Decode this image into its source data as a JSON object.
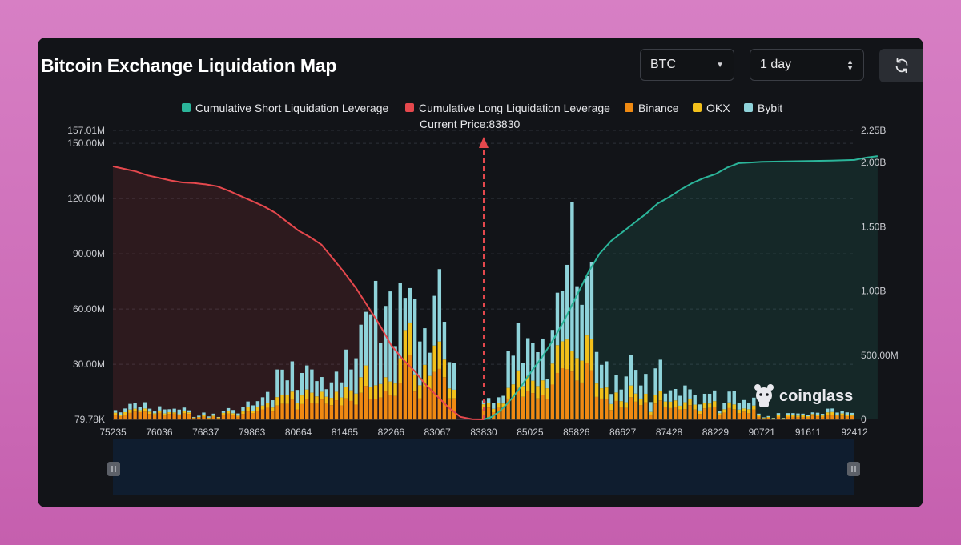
{
  "header": {
    "title": "Bitcoin Exchange Liquidation Map",
    "coin_select": "BTC",
    "range_select": "1 day",
    "refresh_icon": "refresh-icon"
  },
  "watermark": {
    "text": "coinglass",
    "icon": "coinglass-logo-icon"
  },
  "colors": {
    "short_cum": "#2bb59a",
    "long_cum": "#e5484d",
    "binance": "#f08a12",
    "okx": "#f2c01b",
    "bybit": "#8fd3da",
    "current_price": "#e5484d"
  },
  "chart_data": {
    "type": "bar",
    "title": "Bitcoin Exchange Liquidation Map",
    "current_price_label": "Current Price:83830",
    "current_price": 83830,
    "legend": [
      {
        "key": "short_cum",
        "label": "Cumulative Short Liquidation Leverage"
      },
      {
        "key": "long_cum",
        "label": "Cumulative Long Liquidation Leverage"
      },
      {
        "key": "binance",
        "label": "Binance"
      },
      {
        "key": "okx",
        "label": "OKX"
      },
      {
        "key": "bybit",
        "label": "Bybit"
      }
    ],
    "x_tick_labels": [
      "75235",
      "76036",
      "76837",
      "79863",
      "80664",
      "81465",
      "82266",
      "83067",
      "83830",
      "85025",
      "85826",
      "86627",
      "87428",
      "88229",
      "90721",
      "91611",
      "92412"
    ],
    "y_left": {
      "min": 79780,
      "max": 157010000,
      "ticks": [
        {
          "value": 79780,
          "label": "79.78K"
        },
        {
          "value": 30000000,
          "label": "30.00M"
        },
        {
          "value": 60000000,
          "label": "60.00M"
        },
        {
          "value": 90000000,
          "label": "90.00M"
        },
        {
          "value": 120000000,
          "label": "120.00M"
        },
        {
          "value": 150000000,
          "label": "150.00M"
        },
        {
          "value": 157010000,
          "label": "157.01M"
        }
      ]
    },
    "y_right": {
      "min": 0,
      "max": 2250000000,
      "ticks": [
        {
          "value": 0,
          "label": "0"
        },
        {
          "value": 500000000,
          "label": "500.00M"
        },
        {
          "value": 1000000000,
          "label": "1.00B"
        },
        {
          "value": 1500000000,
          "label": "1.50B"
        },
        {
          "value": 2000000000,
          "label": "2.00B"
        },
        {
          "value": 2250000000,
          "label": "2.25B"
        }
      ]
    },
    "long_cumulative": {
      "name": "Cumulative Long Liquidation Leverage",
      "x": [
        75235,
        75435,
        75635,
        75835,
        76036,
        76236,
        76436,
        76636,
        76837,
        77593,
        78350,
        79106,
        79863,
        80063,
        80263,
        80464,
        80664,
        80864,
        81064,
        81264,
        81465,
        81665,
        81865,
        82065,
        82266,
        82466,
        82666,
        82866,
        83067,
        83258,
        83448,
        83639,
        83830
      ],
      "y": [
        1970000000,
        1950000000,
        1930000000,
        1900000000,
        1880000000,
        1860000000,
        1845000000,
        1840000000,
        1830000000,
        1815000000,
        1780000000,
        1740000000,
        1700000000,
        1660000000,
        1610000000,
        1540000000,
        1470000000,
        1420000000,
        1360000000,
        1250000000,
        1140000000,
        1020000000,
        880000000,
        740000000,
        580000000,
        470000000,
        380000000,
        270000000,
        180000000,
        90000000,
        20000000,
        2000000,
        0
      ]
    },
    "short_cumulative": {
      "name": "Cumulative Short Liquidation Leverage",
      "x": [
        83830,
        84029,
        84228,
        84428,
        84627,
        84826,
        85025,
        85225,
        85426,
        85626,
        85826,
        86026,
        86226,
        86427,
        86627,
        86827,
        87027,
        87228,
        87428,
        87628,
        87828,
        88029,
        88229,
        88852,
        89475,
        90098,
        90721,
        91166,
        91611,
        92011,
        92412,
        92612,
        92812
      ],
      "y": [
        0,
        18000000,
        60000000,
        120000000,
        190000000,
        270000000,
        360000000,
        480000000,
        620000000,
        780000000,
        960000000,
        1140000000,
        1290000000,
        1390000000,
        1460000000,
        1530000000,
        1600000000,
        1680000000,
        1730000000,
        1790000000,
        1840000000,
        1880000000,
        1910000000,
        1960000000,
        1995000000,
        2000000000,
        2005000000,
        2008000000,
        2012000000,
        2015000000,
        2020000000,
        2038000000,
        2050000000
      ]
    },
    "bars": {
      "bybit": [
        [
          0,
          0,
          0,
          0,
          0,
          0,
          0,
          0,
          0,
          0,
          0,
          0,
          0,
          0,
          0,
          0,
          0,
          0,
          0,
          0,
          0,
          0,
          0,
          0,
          0,
          0,
          0,
          0,
          0,
          0,
          0,
          0,
          0,
          0,
          0,
          0,
          0,
          0,
          0,
          0,
          0,
          0,
          0,
          0,
          0,
          0,
          0,
          0,
          0,
          0,
          0,
          0,
          0,
          0,
          0,
          0,
          0,
          0,
          0,
          0,
          0,
          0,
          0,
          0,
          0,
          0,
          0,
          0,
          0,
          0,
          0,
          0,
          0,
          0,
          0,
          0,
          0,
          0,
          0,
          0,
          0,
          0,
          0,
          0,
          0,
          0,
          0,
          0,
          0,
          0,
          0,
          0,
          0,
          0,
          0,
          0,
          0,
          0,
          0,
          0,
          0,
          0,
          0,
          0,
          0,
          0,
          0,
          0,
          0,
          0,
          0,
          0,
          0,
          0,
          0,
          0,
          0,
          0,
          0,
          0,
          0,
          0,
          0,
          0,
          0,
          0,
          0,
          0,
          0,
          0,
          0,
          0,
          0,
          0,
          0,
          0,
          0,
          0,
          0,
          0,
          0,
          0,
          0,
          0,
          0,
          0,
          0,
          0,
          0,
          0,
          0,
          0,
          0,
          0,
          0,
          0,
          0,
          0,
          0,
          0,
          0,
          0,
          0,
          0,
          0,
          0,
          0,
          0,
          0,
          0,
          0,
          0,
          0,
          0,
          0,
          0,
          0,
          0,
          0,
          0,
          0,
          0,
          0,
          0,
          0,
          0
        ]
      ],
      "binance": [
        [
          2.6,
          1.8,
          2.6,
          3.6,
          4.3,
          4,
          4.3,
          3.1,
          2.8,
          3.6,
          2.1,
          3.1,
          3.2,
          2.3,
          3.4,
          3.1,
          0.8,
          1.1,
          1.5,
          0.7,
          1.5,
          0.8,
          2.7,
          3.2,
          2.6,
          1.6,
          3.1,
          4.4,
          3.4,
          4.6,
          5.5,
          6.4,
          4.4,
          7.6,
          8.6,
          8.5,
          10.8,
          5.5,
          8.4,
          11,
          8.9,
          8.6,
          10.9,
          8.6,
          7.8,
          10.5,
          7.7,
          11.5,
          10.1,
          8.1,
          14.5,
          18.3,
          11.3,
          11.1,
          12,
          15.5,
          13.5,
          12.8,
          20,
          31.2,
          35.2,
          15.2,
          11.6,
          18.1,
          16.2,
          25.8,
          27.5,
          23,
          11.5,
          11.5,
          0,
          0,
          0,
          0,
          0,
          5.4,
          6.5,
          4,
          6.3,
          6.5,
          11.4,
          12,
          17.1,
          12.4,
          15.5,
          14.4,
          11.5,
          13.4,
          11.3,
          19,
          25.3,
          27.9,
          27.3,
          26.1,
          21.2,
          20.1,
          30.7,
          26.8,
          12.3,
          11.4,
          11,
          5.2,
          10.1,
          6.9,
          6.3,
          12.1,
          9.7,
          7.9,
          9.4,
          2.7,
          8.7,
          10.4,
          6.6,
          6.2,
          6.6,
          5.4,
          5.7,
          7.8,
          5.4,
          3.1,
          6.1,
          6.3,
          7,
          2.4,
          3.8,
          6.2,
          5.6,
          3.4,
          4.3,
          3.4,
          5.5,
          1.6,
          0.6,
          1,
          0.4,
          1.6,
          0.4,
          1.6,
          1.6,
          1.4,
          1.4,
          1.2,
          2.2,
          1.8,
          1.6,
          2.6,
          2.5,
          2,
          2.1,
          1.8,
          1.9
        ],
        [
          0
        ]
      ],
      "okx": [
        [
          1.1,
          0.5,
          1.4,
          1.8,
          1.6,
          1.1,
          1.7,
          1.2,
          0.6,
          1.3,
          1.2,
          0.9,
          0.7,
          0.6,
          1.3,
          0.8,
          0.3,
          0.3,
          0.8,
          0.3,
          0.6,
          0.4,
          0.9,
          1.3,
          0.8,
          0.5,
          1.3,
          2.3,
          1.3,
          2.1,
          2.1,
          2.4,
          2.1,
          4.6,
          4.6,
          4.7,
          4.4,
          3.3,
          4.7,
          5.3,
          5.7,
          4,
          4.2,
          3.8,
          4,
          4.6,
          4.3,
          6.1,
          5.8,
          6,
          8.5,
          11.1,
          6.6,
          7.5,
          7.3,
          7.5,
          7.2,
          6.8,
          13.3,
          17.4,
          17.5,
          9.3,
          7,
          11.6,
          7.5,
          14.4,
          14.9,
          9.6,
          5.4,
          4.7,
          0,
          0,
          0,
          0,
          0,
          2.9,
          2.6,
          1.8,
          2.5,
          2.2,
          5.8,
          7.1,
          9.6,
          5.8,
          8.1,
          6.7,
          6.7,
          7.9,
          5.7,
          11.4,
          15.1,
          14.6,
          16.2,
          11.2,
          12.2,
          11.9,
          15,
          17,
          7.3,
          5.6,
          6.4,
          3.2,
          4.6,
          3.1,
          3.1,
          6.4,
          4.4,
          3.5,
          4.6,
          1.4,
          4.6,
          5.1,
          3.2,
          3.5,
          3.8,
          2.1,
          3.7,
          3.6,
          2.7,
          1.8,
          2.9,
          2.4,
          3,
          1,
          1.8,
          3.1,
          2.6,
          2,
          1.7,
          2.2,
          2.1,
          0.8,
          0.3,
          0.4,
          0.3,
          0.7,
          0.3,
          0.8,
          0.7,
          0.7,
          0.9,
          0.6,
          0.8,
          0.9,
          0.6,
          1.3,
          1.6,
          0.7,
          1.2,
          0.9,
          0.8
        ]
      ],
      "bybit_top": [
        [
          1.4,
          1.6,
          2,
          3.1,
          2.9,
          1.7,
          3.4,
          1.6,
          1,
          2.3,
          2.2,
          1.6,
          2,
          2.5,
          1.8,
          1.1,
          0.3,
          0.7,
          1.5,
          0.7,
          1.1,
          0.2,
          1.2,
          1.7,
          1.8,
          1.2,
          2.4,
          3.1,
          3,
          3.3,
          4.5,
          6.2,
          4,
          15,
          13.9,
          8.1,
          16.4,
          7.3,
          12.2,
          13.1,
          12.6,
          8.3,
          8,
          4.1,
          8.4,
          10.9,
          8.2,
          20.4,
          11.3,
          19.2,
          28.5,
          29.1,
          39.3,
          56.7,
          22.1,
          38.7,
          48.9,
          20.3,
          40.8,
          17.5,
          18.7,
          40.9,
          23.8,
          19.9,
          12.6,
          27,
          39.3,
          20.5,
          14.3,
          14.6,
          0,
          0,
          0,
          0,
          0,
          2,
          2.6,
          3.2,
          3.3,
          4.2,
          20.2,
          15.6,
          25.9,
          12.6,
          20.6,
          20.5,
          18.4,
          22.7,
          5.2,
          18.3,
          28.5,
          27.4,
          40.5,
          80.8,
          39,
          30.3,
          32.2,
          41.5,
          17.1,
          12.7,
          14.2,
          5.5,
          9.7,
          6.3,
          14,
          16.5,
          12.9,
          7.1,
          10.8,
          5.4,
          14.5,
          17,
          4.3,
          6.2,
          6.2,
          5.4,
          9.1,
          5,
          5.4,
          3.3,
          5,
          5.3,
          5.8,
          1.4,
          3.4,
          5.9,
          7.4,
          3.8,
          4.6,
          3.3,
          4.3,
          0.8,
          0.3,
          0.5,
          0.2,
          1.2,
          0.2,
          1.1,
          1.2,
          1.2,
          0.9,
          0.7,
          0.9,
          1,
          0.9,
          2,
          1.9,
          1.1,
          1.3,
          1.2,
          0.9
        ]
      ]
    }
  }
}
